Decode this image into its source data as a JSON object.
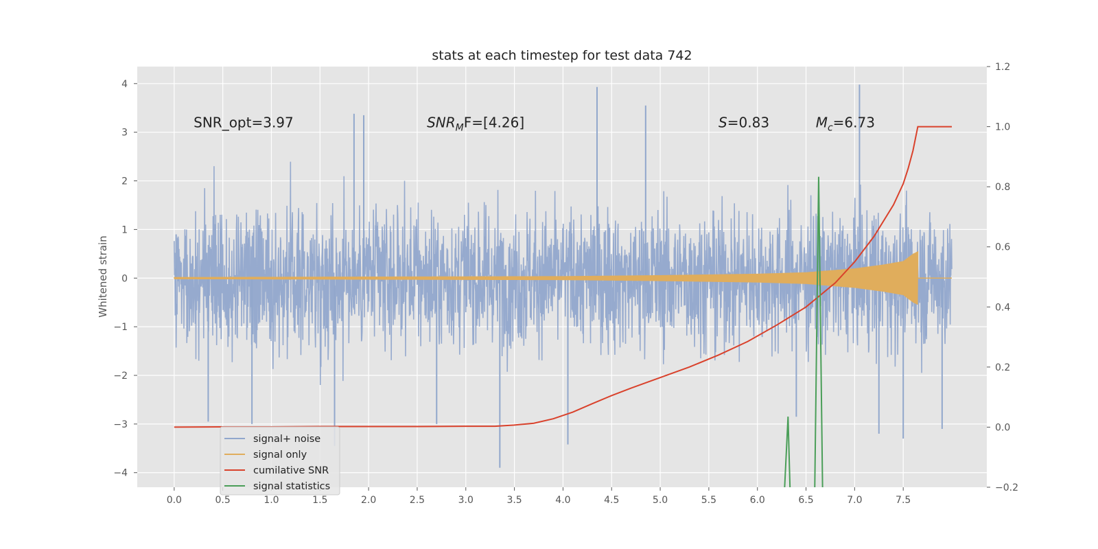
{
  "chart_data": {
    "type": "line",
    "title": "stats at each timestep for test data 742",
    "ylabel": "Whitened strain",
    "xlabel": "",
    "xlim": [
      -0.38,
      8.36
    ],
    "ylim": [
      -4.3,
      4.35
    ],
    "y2lim": [
      -0.2,
      1.2
    ],
    "x_ticks": [
      0.0,
      0.5,
      1.0,
      1.5,
      2.0,
      2.5,
      3.0,
      3.5,
      4.0,
      4.5,
      5.0,
      5.5,
      6.0,
      6.5,
      7.0,
      7.5
    ],
    "x_tick_labels": [
      "0.0",
      "0.5",
      "1.0",
      "1.5",
      "2.0",
      "2.5",
      "3.0",
      "3.5",
      "4.0",
      "4.5",
      "5.0",
      "5.5",
      "6.0",
      "6.5",
      "7.0",
      "7.5"
    ],
    "y_ticks": [
      4,
      3,
      2,
      1,
      0,
      -1,
      -2,
      -3,
      -4
    ],
    "y_tick_labels": [
      "4",
      "3",
      "2",
      "1",
      "0",
      "−1",
      "−2",
      "−3",
      "−4"
    ],
    "y2_ticks": [
      1.2,
      1.0,
      0.8,
      0.6,
      0.4,
      0.2,
      0.0,
      -0.2
    ],
    "y2_tick_labels": [
      "1.2",
      "1.0",
      "0.8",
      "0.6",
      "0.4",
      "0.2",
      "0.0",
      "−0.2"
    ],
    "grid": true,
    "legend_placement": "lower-left",
    "annotations": [
      {
        "text": "SNR_opt=3.97",
        "x": 0.2,
        "y": 3.2
      },
      {
        "math": "SNR",
        "sub": "M",
        "rest": "F=[4.26]",
        "x": 2.6,
        "y": 3.2
      },
      {
        "math": "S",
        "rest": "=0.83",
        "x": 5.6,
        "y": 3.2
      },
      {
        "math": "M",
        "sub": "c",
        "rest": "=6.73",
        "x": 6.6,
        "y": 3.2
      }
    ],
    "series": [
      {
        "name": "signal+ noise",
        "axis": "left",
        "color": "#91a7cc",
        "x_range": [
          0.0,
          8.0
        ],
        "envelope_max_abs": 4.0,
        "spikes": [
          {
            "x": 0.02,
            "y": 0.9
          },
          {
            "x": 0.35,
            "y": -2.95
          },
          {
            "x": 0.8,
            "y": -3.0
          },
          {
            "x": 1.85,
            "y": 3.38
          },
          {
            "x": 1.95,
            "y": 3.35
          },
          {
            "x": 2.7,
            "y": -3.0
          },
          {
            "x": 3.35,
            "y": -3.9
          },
          {
            "x": 4.05,
            "y": -3.42
          },
          {
            "x": 4.35,
            "y": 3.93
          },
          {
            "x": 4.85,
            "y": 3.55
          },
          {
            "x": 7.05,
            "y": 3.98
          },
          {
            "x": 7.25,
            "y": -3.2
          },
          {
            "x": 7.5,
            "y": -3.3
          },
          {
            "x": 7.9,
            "y": -3.1
          },
          {
            "x": 1.65,
            "y": -3.45
          },
          {
            "x": 6.4,
            "y": -2.85
          }
        ]
      },
      {
        "name": "signal only",
        "axis": "left",
        "color": "#e0ad5c",
        "x_range": [
          0.0,
          7.65
        ],
        "amplitude": [
          [
            0.0,
            0.02
          ],
          [
            4.0,
            0.04
          ],
          [
            5.0,
            0.06
          ],
          [
            6.0,
            0.09
          ],
          [
            6.5,
            0.12
          ],
          [
            7.0,
            0.2
          ],
          [
            7.3,
            0.28
          ],
          [
            7.5,
            0.35
          ],
          [
            7.6,
            0.5
          ],
          [
            7.65,
            0.55
          ]
        ]
      },
      {
        "name": "cumilative SNR",
        "axis": "right",
        "color": "#d9412b",
        "x": [
          0.0,
          0.5,
          1.0,
          1.5,
          2.0,
          2.5,
          3.0,
          3.3,
          3.5,
          3.7,
          3.9,
          4.1,
          4.3,
          4.5,
          4.7,
          5.0,
          5.3,
          5.6,
          5.9,
          6.2,
          6.5,
          6.8,
          7.0,
          7.2,
          7.4,
          7.5,
          7.55,
          7.6,
          7.65,
          7.7,
          8.0
        ],
        "values": [
          0.0,
          0.001,
          0.001,
          0.002,
          0.002,
          0.002,
          0.003,
          0.003,
          0.007,
          0.013,
          0.028,
          0.05,
          0.078,
          0.105,
          0.13,
          0.165,
          0.2,
          0.24,
          0.285,
          0.34,
          0.4,
          0.48,
          0.55,
          0.635,
          0.74,
          0.81,
          0.86,
          0.92,
          1.0,
          1.0,
          1.0
        ]
      },
      {
        "name": "signal statistics",
        "axis": "right",
        "color": "#4a9e58",
        "x": [
          6.28,
          6.315,
          6.335,
          6.59,
          6.63,
          6.67
        ],
        "values": [
          -0.2,
          0.035,
          -0.2,
          -0.2,
          0.833,
          -0.2
        ]
      }
    ]
  }
}
